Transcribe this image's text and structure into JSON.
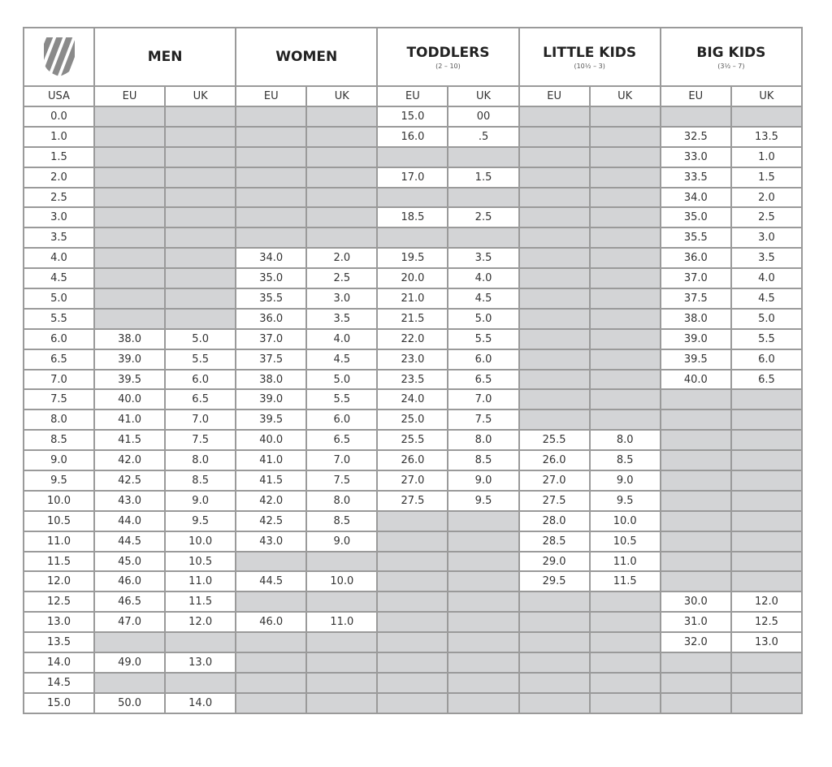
{
  "logo_icon": "kswiss-shield-logo",
  "empty_color": "#d3d4d6",
  "groups": [
    {
      "title": "MEN",
      "sub": ""
    },
    {
      "title": "WOMEN",
      "sub": ""
    },
    {
      "title": "TODDLERS",
      "sub": "(2 – 10)"
    },
    {
      "title": "LITTLE KIDS",
      "sub": "(10½ – 3)"
    },
    {
      "title": "BIG KIDS",
      "sub": "(3½ – 7)"
    }
  ],
  "columns": [
    "USA",
    "EU",
    "UK",
    "EU",
    "UK",
    "EU",
    "UK",
    "EU",
    "UK",
    "EU",
    "UK"
  ],
  "rows": [
    [
      "0.0",
      "",
      "",
      "",
      "",
      "15.0",
      "00",
      "",
      "",
      "",
      ""
    ],
    [
      "1.0",
      "",
      "",
      "",
      "",
      "16.0",
      ".5",
      "",
      "",
      "32.5",
      "13.5"
    ],
    [
      "1.5",
      "",
      "",
      "",
      "",
      "",
      "",
      "",
      "",
      "33.0",
      "1.0"
    ],
    [
      "2.0",
      "",
      "",
      "",
      "",
      "17.0",
      "1.5",
      "",
      "",
      "33.5",
      "1.5"
    ],
    [
      "2.5",
      "",
      "",
      "",
      "",
      "",
      "",
      "",
      "",
      "34.0",
      "2.0"
    ],
    [
      "3.0",
      "",
      "",
      "",
      "",
      "18.5",
      "2.5",
      "",
      "",
      "35.0",
      "2.5"
    ],
    [
      "3.5",
      "",
      "",
      "",
      "",
      "",
      "",
      "",
      "",
      "35.5",
      "3.0"
    ],
    [
      "4.0",
      "",
      "",
      "34.0",
      "2.0",
      "19.5",
      "3.5",
      "",
      "",
      "36.0",
      "3.5"
    ],
    [
      "4.5",
      "",
      "",
      "35.0",
      "2.5",
      "20.0",
      "4.0",
      "",
      "",
      "37.0",
      "4.0"
    ],
    [
      "5.0",
      "",
      "",
      "35.5",
      "3.0",
      "21.0",
      "4.5",
      "",
      "",
      "37.5",
      "4.5"
    ],
    [
      "5.5",
      "",
      "",
      "36.0",
      "3.5",
      "21.5",
      "5.0",
      "",
      "",
      "38.0",
      "5.0"
    ],
    [
      "6.0",
      "38.0",
      "5.0",
      "37.0",
      "4.0",
      "22.0",
      "5.5",
      "",
      "",
      "39.0",
      "5.5"
    ],
    [
      "6.5",
      "39.0",
      "5.5",
      "37.5",
      "4.5",
      "23.0",
      "6.0",
      "",
      "",
      "39.5",
      "6.0"
    ],
    [
      "7.0",
      "39.5",
      "6.0",
      "38.0",
      "5.0",
      "23.5",
      "6.5",
      "",
      "",
      "40.0",
      "6.5"
    ],
    [
      "7.5",
      "40.0",
      "6.5",
      "39.0",
      "5.5",
      "24.0",
      "7.0",
      "",
      "",
      "",
      ""
    ],
    [
      "8.0",
      "41.0",
      "7.0",
      "39.5",
      "6.0",
      "25.0",
      "7.5",
      "",
      "",
      "",
      ""
    ],
    [
      "8.5",
      "41.5",
      "7.5",
      "40.0",
      "6.5",
      "25.5",
      "8.0",
      "25.5",
      "8.0",
      "",
      ""
    ],
    [
      "9.0",
      "42.0",
      "8.0",
      "41.0",
      "7.0",
      "26.0",
      "8.5",
      "26.0",
      "8.5",
      "",
      ""
    ],
    [
      "9.5",
      "42.5",
      "8.5",
      "41.5",
      "7.5",
      "27.0",
      "9.0",
      "27.0",
      "9.0",
      "",
      ""
    ],
    [
      "10.0",
      "43.0",
      "9.0",
      "42.0",
      "8.0",
      "27.5",
      "9.5",
      "27.5",
      "9.5",
      "",
      ""
    ],
    [
      "10.5",
      "44.0",
      "9.5",
      "42.5",
      "8.5",
      "",
      "",
      "28.0",
      "10.0",
      "",
      ""
    ],
    [
      "11.0",
      "44.5",
      "10.0",
      "43.0",
      "9.0",
      "",
      "",
      "28.5",
      "10.5",
      "",
      ""
    ],
    [
      "11.5",
      "45.0",
      "10.5",
      "",
      "",
      "",
      "",
      "29.0",
      "11.0",
      "",
      ""
    ],
    [
      "12.0",
      "46.0",
      "11.0",
      "44.5",
      "10.0",
      "",
      "",
      "29.5",
      "11.5",
      "",
      ""
    ],
    [
      "12.5",
      "46.5",
      "11.5",
      "",
      "",
      "",
      "",
      "",
      "",
      "30.0",
      "12.0"
    ],
    [
      "13.0",
      "47.0",
      "12.0",
      "46.0",
      "11.0",
      "",
      "",
      "",
      "",
      "31.0",
      "12.5"
    ],
    [
      "13.5",
      "",
      "",
      "",
      "",
      "",
      "",
      "",
      "",
      "32.0",
      "13.0"
    ],
    [
      "14.0",
      "49.0",
      "13.0",
      "",
      "",
      "",
      "",
      "",
      "",
      "",
      ""
    ],
    [
      "14.5",
      "",
      "",
      "",
      "",
      "",
      "",
      "",
      "",
      "",
      ""
    ],
    [
      "15.0",
      "50.0",
      "14.0",
      "",
      "",
      "",
      "",
      "",
      "",
      "",
      ""
    ]
  ]
}
